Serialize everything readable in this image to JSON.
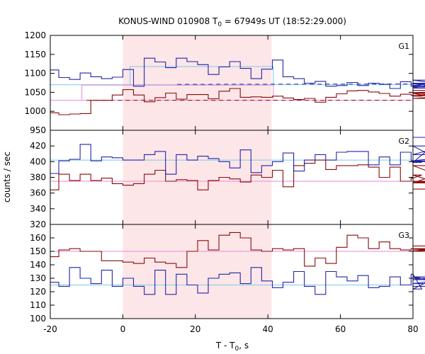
{
  "chart_data": {
    "type": "line",
    "title": "KONUS-WIND 010908 T",
    "title_sub": "0",
    "title_rest": " = 67949s UT (18:52:29.000)",
    "xlabel": "T - T",
    "xlabel_sub": "0",
    "xlabel_rest": ", s",
    "ylabel": "counts / sec",
    "xlim": [
      -20,
      80
    ],
    "xticks": [
      -20,
      0,
      20,
      40,
      60,
      80
    ],
    "xtick_labels": [
      "-20",
      "0",
      "20",
      "40",
      "60",
      "80"
    ],
    "highlight": {
      "x0": 0,
      "x1": 41,
      "color": "#fde6e8"
    },
    "colors": {
      "blue": "#2424a8",
      "red": "#8b0a0a",
      "cyan": "#7ccbe6",
      "pink": "#e98ad7"
    },
    "bin_width": 2.944,
    "bin_start": -20.6,
    "panels": [
      {
        "name": "G1",
        "ylim": [
          950,
          1200
        ],
        "yticks": [
          950,
          1000,
          1050,
          1100,
          1150,
          1200
        ],
        "ytick_labels": [
          "950",
          "1000",
          "1050",
          "1100",
          "1150",
          "1200"
        ],
        "series_blue": [
          1109,
          1089,
          1084,
          1101,
          1091,
          1086,
          1090,
          1110,
          1066,
          1140,
          1130,
          1115,
          1140,
          1131,
          1123,
          1097,
          1117,
          1131,
          1113,
          1086,
          1111,
          1135,
          1091,
          1086,
          1074,
          1079,
          1066,
          1068,
          1076,
          1068,
          1074,
          1071,
          1060,
          1078,
          1066,
          1068,
          1074,
          1061,
          1082,
          1064,
          1072
        ],
        "series_red": [
          996,
          991,
          993,
          994,
          1029,
          1029,
          1043,
          1057,
          1043,
          1025,
          1036,
          1048,
          1032,
          1044,
          1044,
          1033,
          1053,
          1060,
          1037,
          1038,
          1037,
          1040,
          1035,
          1031,
          1034,
          1024,
          1037,
          1046,
          1054,
          1055,
          1051,
          1047,
          1040,
          1045,
          1042,
          1040,
          1047,
          1034,
          1041,
          1049,
          1055
        ],
        "bg_blue": 1070,
        "bg_red": 1029,
        "avg_blue": {
          "x0": 2.0,
          "x1": 41.5,
          "y": 1118
        },
        "avg_red": {
          "x0": -11.3,
          "x1": 41.5,
          "y": 1069
        }
      },
      {
        "name": "G2",
        "ylim": [
          320,
          440
        ],
        "yticks": [
          320,
          340,
          360,
          380,
          400,
          420
        ],
        "ytick_labels": [
          "320",
          "340",
          "360",
          "380",
          "400",
          "420"
        ],
        "series_blue": [
          385,
          401,
          403,
          422,
          401,
          406,
          405,
          402,
          402,
          409,
          413,
          384,
          409,
          402,
          407,
          404,
          400,
          392,
          415,
          386,
          395,
          400,
          411,
          388,
          402,
          409,
          402,
          412,
          413,
          413,
          396,
          406,
          396,
          412,
          401,
          399,
          420,
          400,
          401,
          409,
          431
        ],
        "series_red": [
          364,
          384,
          376,
          384,
          376,
          379,
          372,
          370,
          372,
          384,
          389,
          375,
          377,
          376,
          364,
          376,
          380,
          378,
          374,
          383,
          380,
          389,
          368,
          395,
          398,
          402,
          390,
          395,
          395,
          396,
          393,
          380,
          393,
          375,
          379,
          383,
          375,
          374,
          373,
          395,
          365
        ],
        "bg_blue": 402,
        "bg_red": 375
      },
      {
        "name": "G3",
        "ylim": [
          100,
          170
        ],
        "yticks": [
          100,
          110,
          120,
          130,
          140,
          150,
          160
        ],
        "ytick_labels": [
          "100",
          "110",
          "120",
          "130",
          "140",
          "150",
          "160"
        ],
        "series_blue": [
          127,
          124,
          138,
          130,
          126,
          136,
          124,
          130,
          124,
          118,
          136,
          118,
          133,
          125,
          119,
          130,
          133,
          134,
          126,
          138,
          128,
          123,
          127,
          135,
          124,
          118,
          135,
          131,
          128,
          132,
          123,
          124,
          131,
          125,
          133,
          122,
          129,
          130,
          126,
          131,
          124
        ],
        "series_red": [
          146,
          151,
          152,
          150,
          150,
          143,
          143,
          142,
          141,
          145,
          142,
          141,
          138,
          150,
          158,
          151,
          162,
          164,
          160,
          151,
          150,
          152,
          151,
          152,
          139,
          145,
          141,
          153,
          162,
          160,
          152,
          157,
          152,
          151,
          152,
          152,
          151,
          151,
          152,
          150,
          154
        ],
        "bg_blue": 125,
        "bg_red": 150
      }
    ]
  }
}
